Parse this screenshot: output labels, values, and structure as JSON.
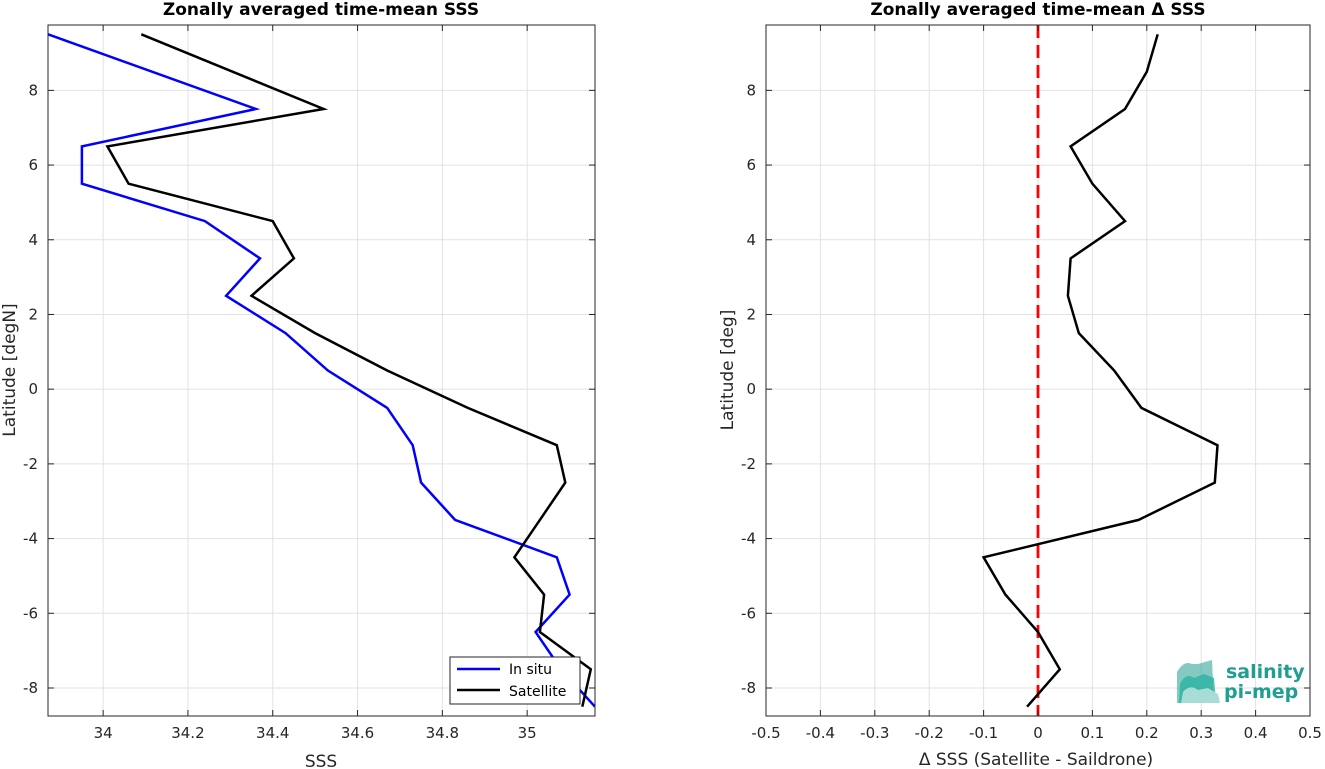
{
  "chart_data": [
    {
      "type": "line",
      "title": "Zonally averaged time-mean SSS",
      "xlabel": "SSS",
      "ylabel": "Latitude [degN]",
      "xlim": [
        33.87,
        35.16
      ],
      "ylim": [
        -8.75,
        9.75
      ],
      "xticks": [
        34,
        34.2,
        34.4,
        34.6,
        34.8,
        35
      ],
      "xtick_labels": [
        "34",
        "34.2",
        "34.4",
        "34.6",
        "34.8",
        "35"
      ],
      "yticks": [
        -8,
        -6,
        -4,
        -2,
        0,
        2,
        4,
        6,
        8
      ],
      "ytick_labels": [
        "-8",
        "-6",
        "-4",
        "-2",
        "0",
        "2",
        "4",
        "6",
        "8"
      ],
      "grid": true,
      "legend": "bottom-right",
      "series": [
        {
          "name": "In situ",
          "color": "#0000ff",
          "x": [
            33.87,
            34.36,
            33.95,
            33.95,
            34.24,
            34.37,
            34.29,
            34.43,
            34.53,
            34.67,
            34.73,
            34.75,
            34.83,
            35.07,
            35.1,
            35.02,
            35.08,
            35.16
          ],
          "y": [
            9.5,
            7.5,
            6.5,
            5.5,
            4.5,
            3.5,
            2.5,
            1.5,
            0.5,
            -0.5,
            -1.5,
            -2.5,
            -3.5,
            -4.5,
            -5.5,
            -6.5,
            -7.5,
            -8.5
          ]
        },
        {
          "name": "Satellite",
          "color": "#000000",
          "x": [
            34.09,
            34.52,
            34.01,
            34.06,
            34.4,
            34.45,
            34.35,
            34.5,
            34.67,
            34.86,
            35.07,
            35.09,
            35.03,
            34.97,
            35.04,
            35.03,
            35.15,
            35.13
          ],
          "y": [
            9.5,
            7.5,
            6.5,
            5.5,
            4.5,
            3.5,
            2.5,
            1.5,
            0.5,
            -0.5,
            -1.5,
            -2.5,
            -3.5,
            -4.5,
            -5.5,
            -6.5,
            -7.5,
            -8.5
          ]
        }
      ]
    },
    {
      "type": "line",
      "title": "Zonally averaged time-mean Δ SSS",
      "xlabel": "Δ SSS (Satellite - Saildrone)",
      "ylabel": "Latitude [deg]",
      "xlim": [
        -0.5,
        0.5
      ],
      "ylim": [
        -8.75,
        9.75
      ],
      "xticks": [
        -0.5,
        -0.4,
        -0.3,
        -0.2,
        -0.1,
        0,
        0.1,
        0.2,
        0.3,
        0.4,
        0.5
      ],
      "xtick_labels": [
        "-0.5",
        "-0.4",
        "-0.3",
        "-0.2",
        "-0.1",
        "0",
        "0.1",
        "0.2",
        "0.3",
        "0.4",
        "0.5"
      ],
      "yticks": [
        -8,
        -6,
        -4,
        -2,
        0,
        2,
        4,
        6,
        8
      ],
      "ytick_labels": [
        "-8",
        "-6",
        "-4",
        "-2",
        "0",
        "2",
        "4",
        "6",
        "8"
      ],
      "grid": true,
      "reference_line": {
        "x": 0,
        "color": "#ff0000",
        "style": "dashed"
      },
      "series": [
        {
          "name": "",
          "color": "#000000",
          "x": [
            0.22,
            0.2,
            0.16,
            0.06,
            0.1,
            0.16,
            0.06,
            0.055,
            0.075,
            0.14,
            0.19,
            0.33,
            0.325,
            0.185,
            -0.1,
            -0.06,
            0.0,
            0.04,
            -0.02
          ],
          "y": [
            9.5,
            8.5,
            7.5,
            6.5,
            5.5,
            4.5,
            3.5,
            2.5,
            1.5,
            0.5,
            -0.5,
            -1.5,
            -2.5,
            -3.5,
            -4.5,
            -5.5,
            -6.5,
            -7.5,
            -8.5
          ]
        }
      ]
    }
  ],
  "logo": {
    "line1": "salinity",
    "line2": "pi-mep",
    "color": "#1f9f91"
  }
}
